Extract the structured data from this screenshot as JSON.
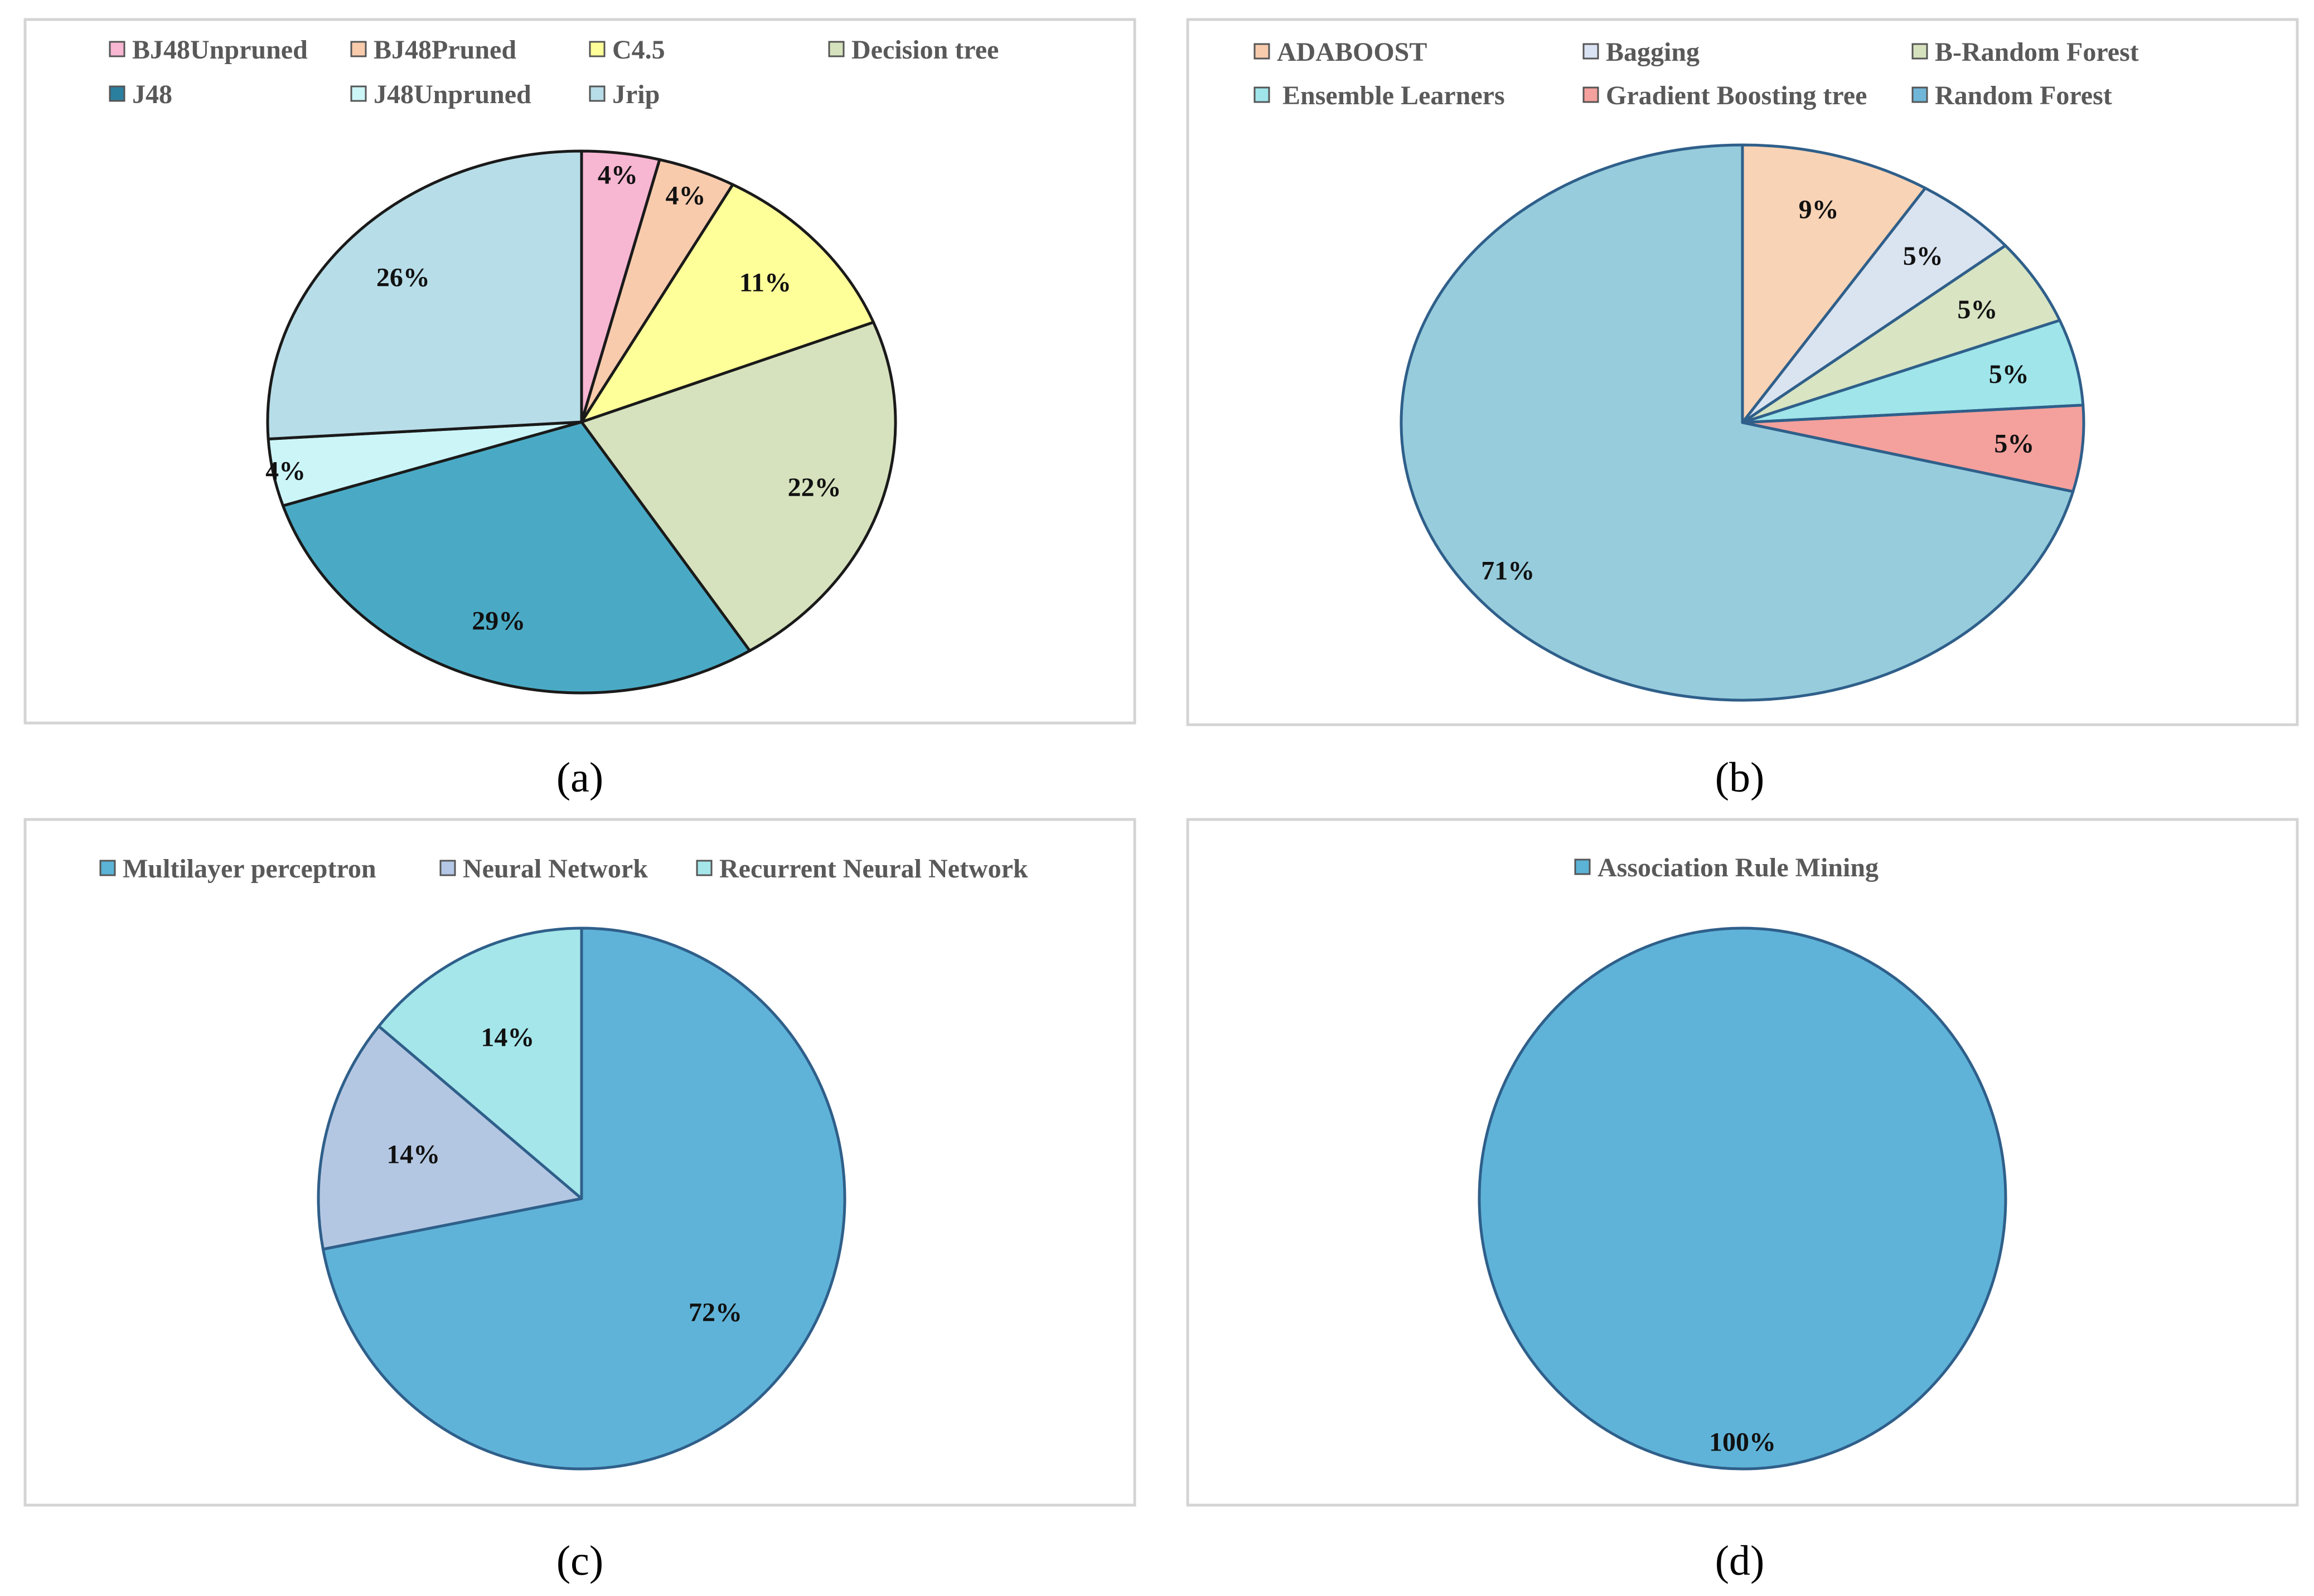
{
  "chart_data": [
    {
      "type": "pie",
      "panel": "(a)",
      "panel_letter": "a",
      "outline": "#1a1a1a",
      "legend": [
        {
          "label": "BJ48Unpruned",
          "color": "#f7b6d2"
        },
        {
          "label": "BJ48Pruned",
          "color": "#f8cbad"
        },
        {
          "label": "C4.5",
          "color": "#ffff99"
        },
        {
          "label": "Decision tree",
          "color": "#d6e2bd"
        },
        {
          "label": "J48",
          "color": "#2b7f9e"
        },
        {
          "label": "J48Unpruned",
          "color": "#ccf5f8"
        },
        {
          "label": "Jrip",
          "color": "#b7dde8"
        }
      ],
      "slices": [
        {
          "label": "BJ48Unpruned",
          "value": 4,
          "text": "4%",
          "color": "#f7b6d2"
        },
        {
          "label": "BJ48Pruned",
          "value": 4,
          "text": "4%",
          "color": "#f8cbad"
        },
        {
          "label": "C4.5",
          "value": 11,
          "text": "11%",
          "color": "#ffff99"
        },
        {
          "label": "Decision tree",
          "value": 22,
          "text": "22%",
          "color": "#d6e2bd"
        },
        {
          "label": "J48",
          "value": 29,
          "text": "29%",
          "color": "#4aaac5"
        },
        {
          "label": "J48Unpruned",
          "value": 4,
          "text": "4%",
          "color": "#ccf5f8"
        },
        {
          "label": "Jrip",
          "value": 26,
          "text": "26%",
          "color": "#b7dde8"
        }
      ]
    },
    {
      "type": "pie",
      "panel": "(b)",
      "panel_letter": "b",
      "outline": "#2f5f8a",
      "legend": [
        {
          "label": "ADABOOST",
          "color": "#f8cbad"
        },
        {
          "label": "Bagging",
          "color": "#dae3f3"
        },
        {
          "label": "B-Random Forest",
          "color": "#d6e2bd"
        },
        {
          "label": "Ensemble Learners",
          "color": "#9fe5ea"
        },
        {
          "label": "Gradient Boosting tree",
          "color": "#f4a09c"
        },
        {
          "label": "Random Forest",
          "color": "#6fb6d8"
        }
      ],
      "slices": [
        {
          "label": "ADABOOST",
          "value": 9,
          "text": "9%",
          "color": "#f8d3b5"
        },
        {
          "label": "Bagging",
          "value": 5,
          "text": "5%",
          "color": "#dae3f0"
        },
        {
          "label": "B-Random Forest",
          "value": 5,
          "text": "5%",
          "color": "#d8e4c2"
        },
        {
          "label": "Ensemble Learners",
          "value": 5,
          "text": "5%",
          "color": "#9fe5ea"
        },
        {
          "label": "Gradient Boosting tree",
          "value": 5,
          "text": "5%",
          "color": "#f4a09c"
        },
        {
          "label": "Random Forest",
          "value": 71,
          "text": "71%",
          "color": "#96ccdc"
        }
      ]
    },
    {
      "type": "pie",
      "panel": "(c)",
      "panel_letter": "c",
      "outline": "#2f5f8a",
      "legend": [
        {
          "label": "Multilayer perceptron",
          "color": "#5bb3d6"
        },
        {
          "label": "Neural Network",
          "color": "#b4c7e7"
        },
        {
          "label": "Recurrent Neural Network",
          "color": "#a5e6ea"
        }
      ],
      "slices": [
        {
          "label": "Multilayer perceptron",
          "value": 72,
          "text": "72%",
          "color": "#5fb3d8"
        },
        {
          "label": "Neural Network",
          "value": 14,
          "text": "14%",
          "color": "#b4c7e2"
        },
        {
          "label": "Recurrent Neural Network",
          "value": 14,
          "text": "14%",
          "color": "#a5e6ea"
        }
      ]
    },
    {
      "type": "pie",
      "panel": "(d)",
      "panel_letter": "d",
      "outline": "#2f5f8a",
      "legend": [
        {
          "label": "Association Rule Mining",
          "color": "#5bb3d6"
        }
      ],
      "slices": [
        {
          "label": "Association Rule Mining",
          "value": 100,
          "text": "100%",
          "color": "#5fb3d8"
        }
      ]
    }
  ]
}
